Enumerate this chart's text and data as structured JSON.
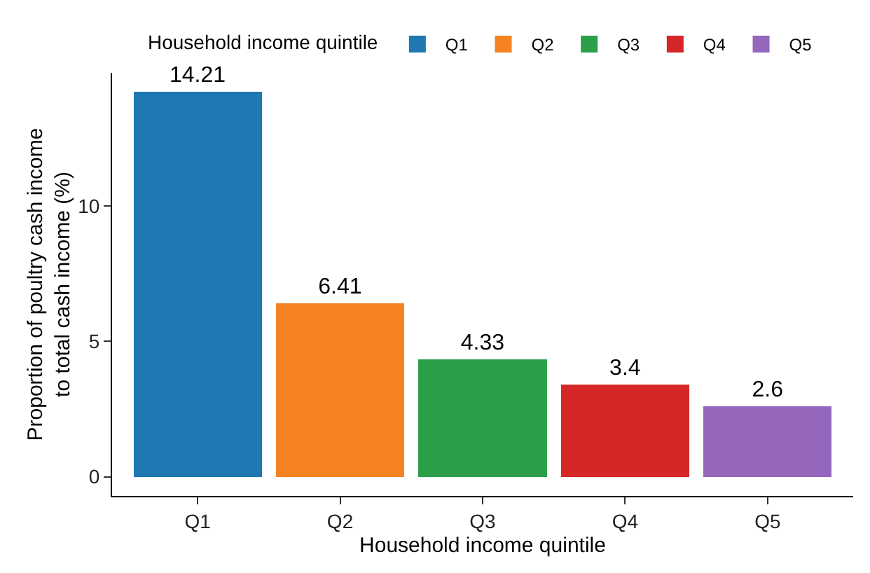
{
  "chart_data": {
    "type": "bar",
    "xlabel": "Household income quintile",
    "ylabel": "Proportion of poultry cash income\nto total cash income (%)",
    "legend_title": "Household income quintile",
    "categories": [
      "Q1",
      "Q2",
      "Q3",
      "Q4",
      "Q5"
    ],
    "stacked": true,
    "series": [
      {
        "name": "Q1",
        "color": "#1f78b4",
        "values": [
          14.21,
          null,
          null,
          null,
          null
        ]
      },
      {
        "name": "Q2",
        "color": "#f58220",
        "values": [
          null,
          6.41,
          null,
          null,
          null
        ]
      },
      {
        "name": "Q3",
        "color": "#2ca048",
        "values": [
          null,
          null,
          4.33,
          null,
          null
        ]
      },
      {
        "name": "Q4",
        "color": "#d62728",
        "values": [
          null,
          null,
          null,
          3.4,
          null
        ]
      },
      {
        "name": "Q5",
        "color": "#9467bd",
        "values": [
          null,
          null,
          null,
          null,
          2.6
        ]
      }
    ],
    "data_labels": true,
    "legend": "top",
    "grid": false,
    "ylim": [
      -0.71,
      14.92
    ],
    "yticks": [
      0,
      5,
      10
    ]
  }
}
